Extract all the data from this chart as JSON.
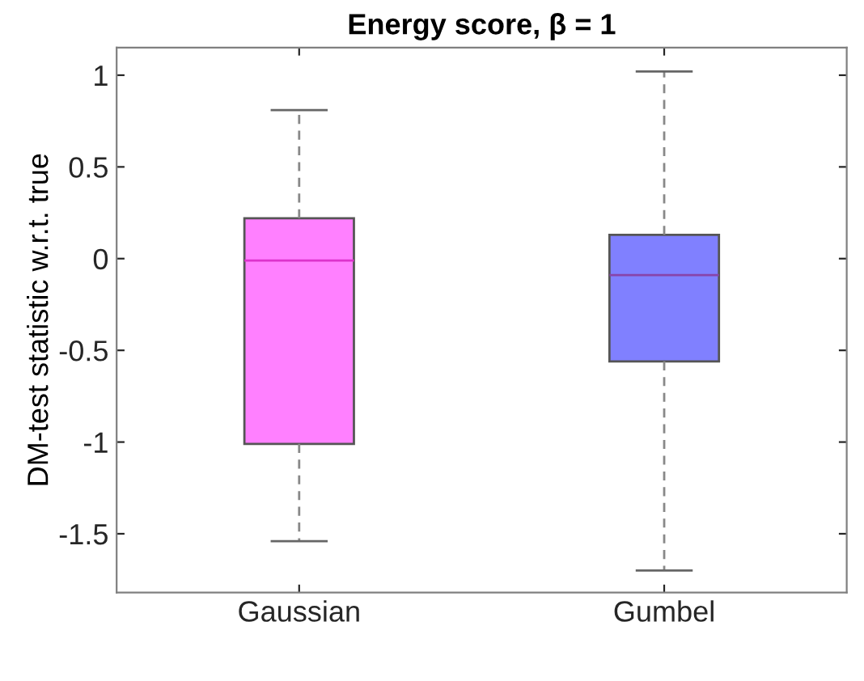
{
  "chart_data": {
    "type": "box",
    "title": "Energy score, β = 1",
    "ylabel": "DM-test statistic w.r.t. true",
    "categories": [
      "Gaussian",
      "Gumbel"
    ],
    "colors": [
      "#ff80ff",
      "#8080ff"
    ],
    "boxes": [
      {
        "low": -1.54,
        "q1": -1.01,
        "median": -0.01,
        "q3": 0.22,
        "high": 0.81
      },
      {
        "low": -1.7,
        "q1": -0.56,
        "median": -0.09,
        "q3": 0.13,
        "high": 1.02
      }
    ],
    "ylim": [
      -1.82,
      1.15
    ],
    "yticks": [
      -1.5,
      -1,
      -0.5,
      0,
      0.5,
      1
    ],
    "grid": false
  }
}
